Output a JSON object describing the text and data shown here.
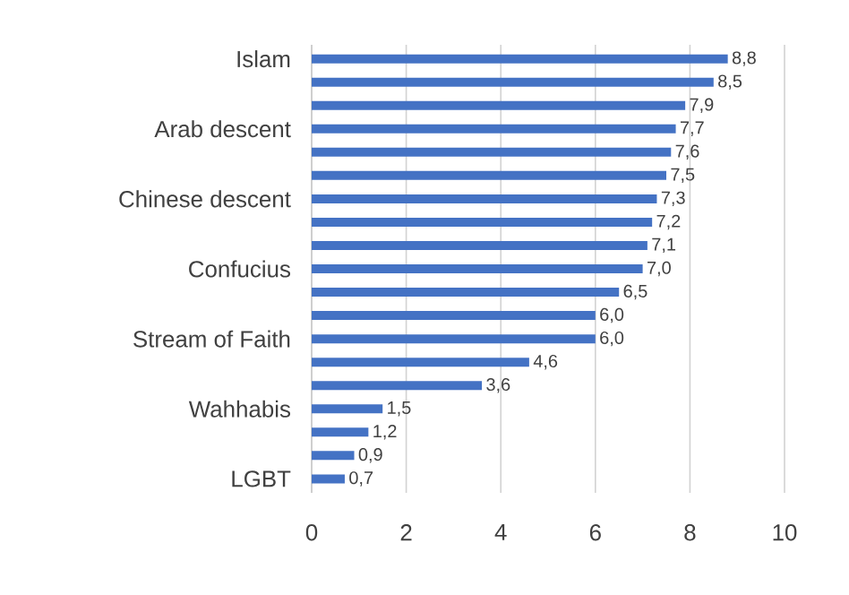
{
  "chart_data": {
    "type": "bar",
    "orientation": "horizontal",
    "categories": [
      "Islam",
      null,
      null,
      "Arab descent",
      null,
      null,
      "Chinese descent",
      null,
      null,
      "Confucius",
      null,
      null,
      "Stream of Faith",
      null,
      null,
      "Wahhabis",
      null,
      null,
      "LGBT"
    ],
    "values": [
      8.8,
      8.5,
      7.9,
      7.7,
      7.6,
      7.5,
      7.3,
      7.2,
      7.1,
      7.0,
      6.5,
      6.0,
      6.0,
      4.6,
      3.6,
      1.5,
      1.2,
      0.9,
      0.7
    ],
    "value_labels": [
      "8,8",
      "8,5",
      "7,9",
      "7,7",
      "7,6",
      "7,5",
      "7,3",
      "7,2",
      "7,1",
      "7,0",
      "6,5",
      "6,0",
      "6,0",
      "4,6",
      "3,6",
      "1,5",
      "1,2",
      "0,9",
      "0,7"
    ],
    "color": "#4472c4",
    "xlim": [
      0,
      10
    ],
    "xticks": [
      0,
      2,
      4,
      6,
      8,
      10
    ],
    "grid": "x"
  }
}
